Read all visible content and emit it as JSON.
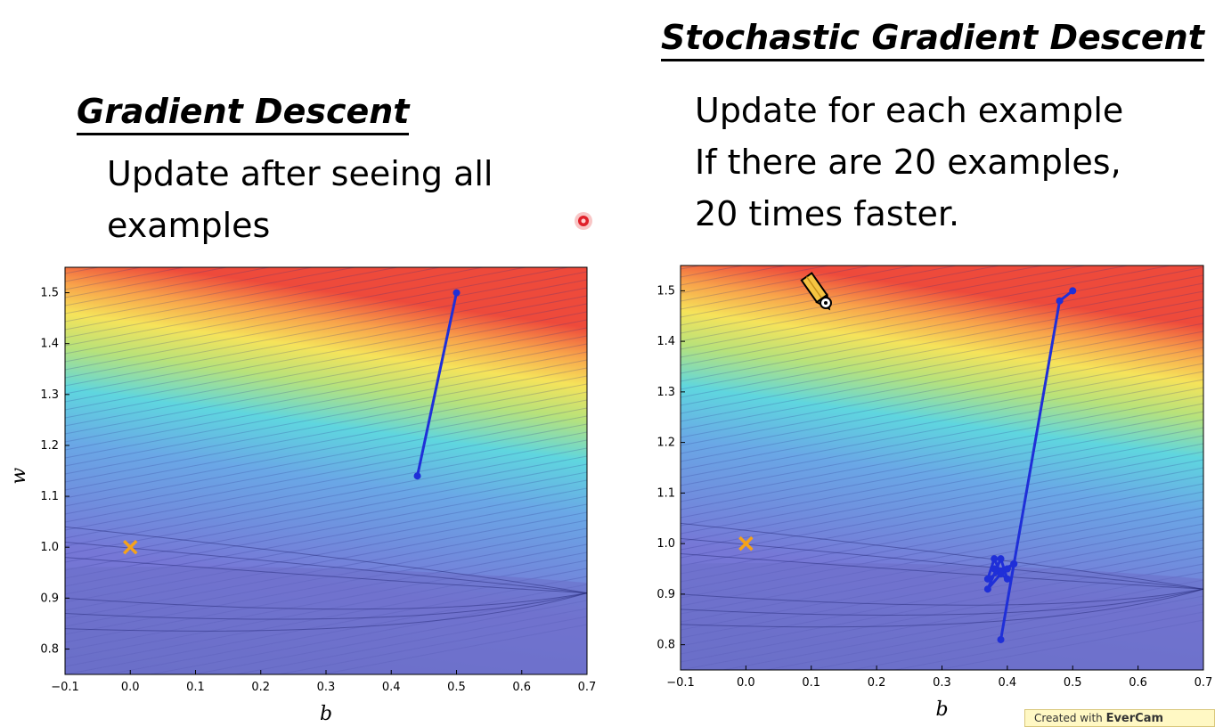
{
  "left_panel": {
    "heading": "Gradient Descent",
    "lines": [
      "Update after seeing all",
      "examples"
    ]
  },
  "right_panel": {
    "heading": "Stochastic Gradient Descent",
    "lines": [
      "Update for each example",
      "If there are 20 examples,",
      "20 times faster."
    ]
  },
  "watermark": {
    "prefix": "Created with ",
    "brand": "EverCam"
  },
  "icons": {
    "cursor": "red-recording-dot-icon",
    "pointer": "pencil-cursor-icon"
  },
  "colors": {
    "path": "#1f2fd8",
    "target": "#f5a21b",
    "flat_region": "#6b70c8"
  },
  "chart_data": [
    {
      "type": "line",
      "title": "",
      "xlabel": "b",
      "ylabel": "w",
      "xlim": [
        -0.1,
        0.7
      ],
      "ylim": [
        0.75,
        1.55
      ],
      "x_ticks": [
        "−0.1",
        "0.0",
        "0.1",
        "0.2",
        "0.3",
        "0.4",
        "0.5",
        "0.6",
        "0.7"
      ],
      "y_ticks": [
        "0.8",
        "0.9",
        "1.0",
        "1.1",
        "1.2",
        "1.3",
        "1.4",
        "1.5"
      ],
      "background": "contour map of loss",
      "target_marker": {
        "b": 0.0,
        "w": 1.0,
        "marker": "x"
      },
      "series": [
        {
          "points": [
            [
              0.5,
              1.5
            ],
            [
              0.44,
              1.14
            ]
          ]
        }
      ]
    },
    {
      "type": "line",
      "title": "",
      "xlabel": "b",
      "ylabel": "",
      "xlim": [
        -0.1,
        0.7
      ],
      "ylim": [
        0.75,
        1.55
      ],
      "x_ticks": [
        "−0.1",
        "0.0",
        "0.1",
        "0.2",
        "0.3",
        "0.4",
        "0.5",
        "0.6",
        "0.7"
      ],
      "y_ticks": [
        "0.8",
        "0.9",
        "1.0",
        "1.1",
        "1.2",
        "1.3",
        "1.4",
        "1.5"
      ],
      "background": "contour map of loss",
      "target_marker": {
        "b": 0.0,
        "w": 1.0,
        "marker": "x"
      },
      "series": [
        {
          "points": [
            [
              0.5,
              1.5
            ],
            [
              0.48,
              1.48
            ],
            [
              0.39,
              0.81
            ],
            [
              0.41,
              0.96
            ],
            [
              0.37,
              0.93
            ],
            [
              0.38,
              0.97
            ],
            [
              0.39,
              0.94
            ],
            [
              0.37,
              0.91
            ],
            [
              0.39,
              0.97
            ],
            [
              0.4,
              0.93
            ],
            [
              0.38,
              0.95
            ],
            [
              0.4,
              0.95
            ],
            [
              0.41,
              0.96
            ],
            [
              0.39,
              0.94
            ]
          ]
        }
      ]
    }
  ]
}
